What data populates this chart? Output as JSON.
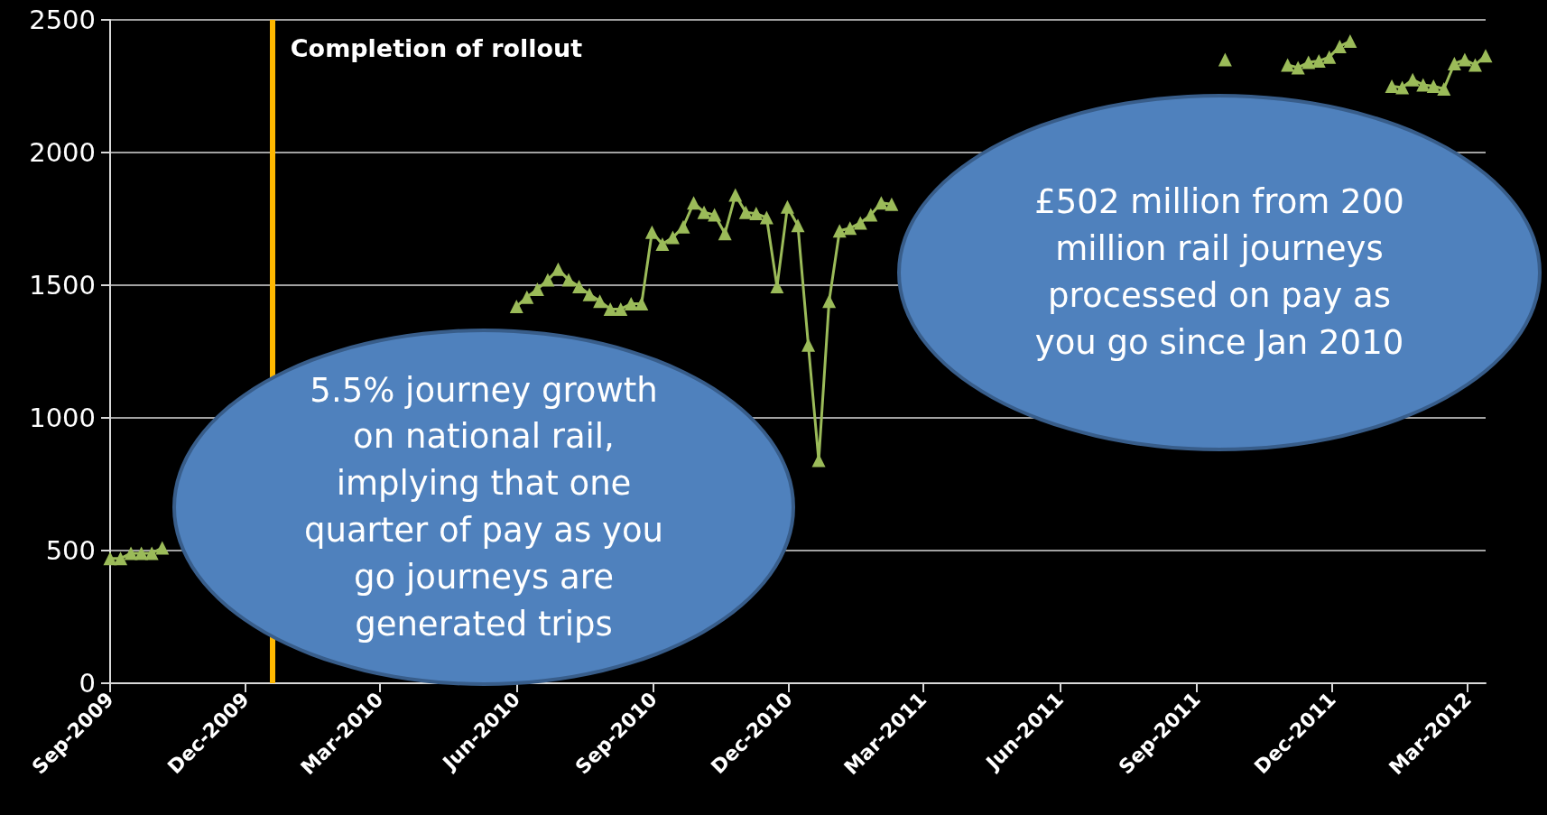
{
  "chart_data": {
    "type": "line",
    "marker": "triangle",
    "grid": "y",
    "line_style": "solid",
    "xlim": [
      "2009-09-01",
      "2012-03-13"
    ],
    "xticks": [
      {
        "value": "2009-09-01",
        "label": "Sep-2009"
      },
      {
        "value": "2009-12-01",
        "label": "Dec-2009"
      },
      {
        "value": "2010-03-01",
        "label": "Mar-2010"
      },
      {
        "value": "2010-06-01",
        "label": "Jun-2010"
      },
      {
        "value": "2010-09-01",
        "label": "Sep-2010"
      },
      {
        "value": "2010-12-01",
        "label": "Dec-2010"
      },
      {
        "value": "2011-03-01",
        "label": "Mar-2011"
      },
      {
        "value": "2011-06-01",
        "label": "Jun-2011"
      },
      {
        "value": "2011-09-01",
        "label": "Sep-2011"
      },
      {
        "value": "2011-12-01",
        "label": "Dec-2011"
      },
      {
        "value": "2012-03-01",
        "label": "Mar-2012"
      }
    ],
    "ylim": [
      0,
      2500
    ],
    "yticks": [
      0,
      500,
      1000,
      1500,
      2000,
      2500
    ],
    "series": [
      {
        "color": "#9bbb59",
        "x": [
          "2009-09-01",
          "2009-09-08",
          "2009-09-15",
          "2009-09-22",
          "2009-09-29",
          "2009-10-06",
          "2009-10-13",
          "2010-05-25",
          "2010-06-01",
          "2010-06-08",
          "2010-06-15",
          "2010-06-22",
          "2010-06-29",
          "2010-07-06",
          "2010-07-13",
          "2010-07-20",
          "2010-07-27",
          "2010-08-03",
          "2010-08-10",
          "2010-08-17",
          "2010-08-24",
          "2010-08-31",
          "2010-09-07",
          "2010-09-14",
          "2010-09-21",
          "2010-09-28",
          "2010-10-05",
          "2010-10-12",
          "2010-10-19",
          "2010-10-26",
          "2010-11-02",
          "2010-11-09",
          "2010-11-16",
          "2010-11-23",
          "2010-11-30",
          "2010-12-07",
          "2010-12-14",
          "2010-12-21",
          "2010-12-28",
          "2011-01-04",
          "2011-01-11",
          "2011-01-18",
          "2011-01-25",
          "2011-02-01",
          "2011-02-08",
          "2011-02-15",
          "2011-09-20",
          "2011-09-27",
          "2011-11-01",
          "2011-11-08",
          "2011-11-15",
          "2011-11-22",
          "2011-11-29",
          "2011-12-06",
          "2011-12-13",
          "2011-12-20",
          "2012-01-10",
          "2012-01-17",
          "2012-01-24",
          "2012-01-31",
          "2012-02-07",
          "2012-02-14",
          "2012-02-21",
          "2012-02-28",
          "2012-03-06",
          "2012-03-13"
        ],
        "values": [
          470,
          470,
          490,
          490,
          490,
          510,
          null,
          null,
          1420,
          1455,
          1485,
          1520,
          1560,
          1520,
          1495,
          1465,
          1440,
          1410,
          1410,
          1430,
          1430,
          1700,
          1655,
          1680,
          1720,
          1810,
          1775,
          1765,
          1695,
          1840,
          1775,
          1770,
          1755,
          1495,
          1795,
          1725,
          1275,
          840,
          1440,
          1705,
          1715,
          1735,
          1765,
          1810,
          1805,
          null,
          2350,
          null,
          2330,
          2320,
          2340,
          2345,
          2360,
          2400,
          2420,
          null,
          2250,
          2245,
          2275,
          2255,
          2250,
          2240,
          2335,
          2350,
          2330,
          2365
        ]
      }
    ],
    "ref_lines": [
      {
        "axis": "x",
        "value": "2009-12-19",
        "label": "Completion of rollout",
        "color": "#ffb800"
      }
    ],
    "annotations": [
      "5.5% journey growth on national rail, implying that one quarter of pay as you go journeys are generated trips",
      "£502 million from 200 million rail journeys processed on pay as you go since Jan 2010"
    ]
  }
}
